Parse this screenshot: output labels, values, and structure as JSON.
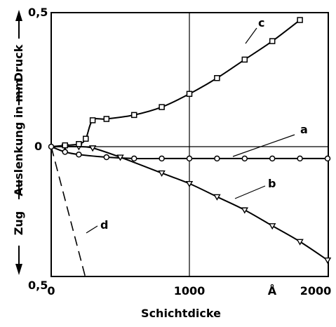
{
  "chart_data": {
    "type": "line",
    "title": "",
    "xlabel": "Schichtdicke",
    "ylabel": "Auslenkung in mm",
    "ylabel_top": "Druck",
    "ylabel_bottom": "Zug",
    "xlim": [
      0,
      2000
    ],
    "ylim": [
      -0.5,
      0.5
    ],
    "x_ticks": [
      "0",
      "1000",
      "2000"
    ],
    "x_unit": "Å",
    "y_ticks": [
      "0,5",
      "0",
      "0,5"
    ],
    "grid": "x=1000 and y=0 reference lines",
    "series": [
      {
        "name": "a",
        "marker": "circle",
        "x": [
          0,
          100,
          200,
          400,
          600,
          800,
          1000,
          1200,
          1400,
          1600,
          1800,
          2000
        ],
        "y": [
          0,
          -0.02,
          -0.03,
          -0.04,
          -0.045,
          -0.045,
          -0.045,
          -0.045,
          -0.045,
          -0.045,
          -0.045,
          -0.045
        ]
      },
      {
        "name": "b",
        "marker": "triangle-down",
        "x": [
          0,
          100,
          200,
          300,
          500,
          800,
          1000,
          1200,
          1400,
          1600,
          1800,
          2000
        ],
        "y": [
          0,
          0,
          0,
          -0.005,
          -0.04,
          -0.1,
          -0.14,
          -0.19,
          -0.24,
          -0.3,
          -0.36,
          -0.43
        ]
      },
      {
        "name": "c",
        "marker": "square",
        "x": [
          0,
          100,
          200,
          250,
          300,
          400,
          600,
          800,
          1000,
          1200,
          1400,
          1600,
          1800
        ],
        "y": [
          0,
          0.005,
          0.01,
          0.03,
          0.1,
          0.105,
          0.12,
          0.15,
          0.2,
          0.26,
          0.33,
          0.4,
          0.48
        ]
      },
      {
        "name": "d",
        "style": "dashed",
        "x": [
          0,
          250
        ],
        "y": [
          0,
          -0.5
        ]
      }
    ]
  }
}
